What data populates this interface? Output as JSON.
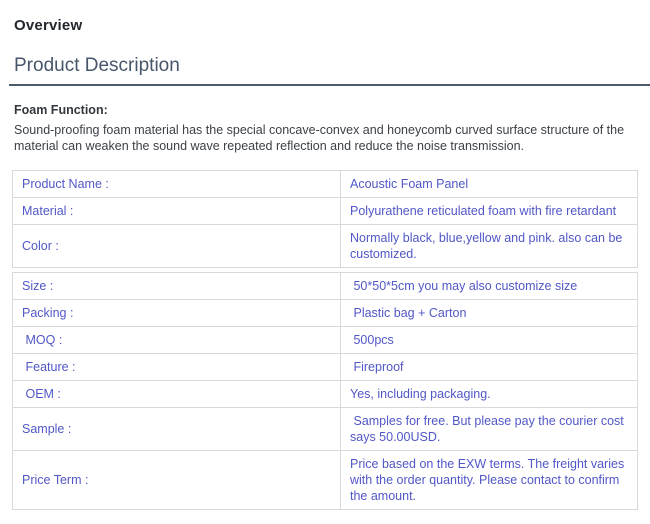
{
  "page": {
    "title": "Overview",
    "section_title": "Product Description"
  },
  "description": {
    "heading": "Foam Function:",
    "body": "Sound-proofing foam material has the special concave-convex and honeycomb curved surface structure of the material can weaken the sound wave repeated reflection and reduce the noise transmission."
  },
  "colors": {
    "accent_text": "#5157c7",
    "table_border": "#d9d9d9",
    "heading_underline": "#4d5a68",
    "title_text": "#22272e",
    "section_title_text": "#47566a"
  },
  "spec_tables": [
    {
      "rows": [
        {
          "label": "Product Name :",
          "value": "Acoustic Foam Panel"
        },
        {
          "label": "Material :",
          "value": "Polyurathene reticulated foam with fire retardant"
        },
        {
          "label": "Color :",
          "value": "Normally black, blue,yellow and pink. also can be customized."
        }
      ]
    },
    {
      "rows": [
        {
          "label": "Size :",
          "value": " 50*50*5cm you may also customize size"
        },
        {
          "label": "Packing :",
          "value": " Plastic bag + Carton"
        },
        {
          "label": " MOQ :",
          "value": " 500pcs"
        },
        {
          "label": " Feature :",
          "value": " Fireproof"
        },
        {
          "label": " OEM :",
          "value": "Yes, including packaging."
        },
        {
          "label": "Sample :",
          "value": " Samples for free. But please pay the courier cost says 50.00USD."
        },
        {
          "label": "Price Term :",
          "value": "Price based on the EXW terms. The freight varies with the order quantity. Please contact to confirm the amount."
        }
      ]
    }
  ]
}
